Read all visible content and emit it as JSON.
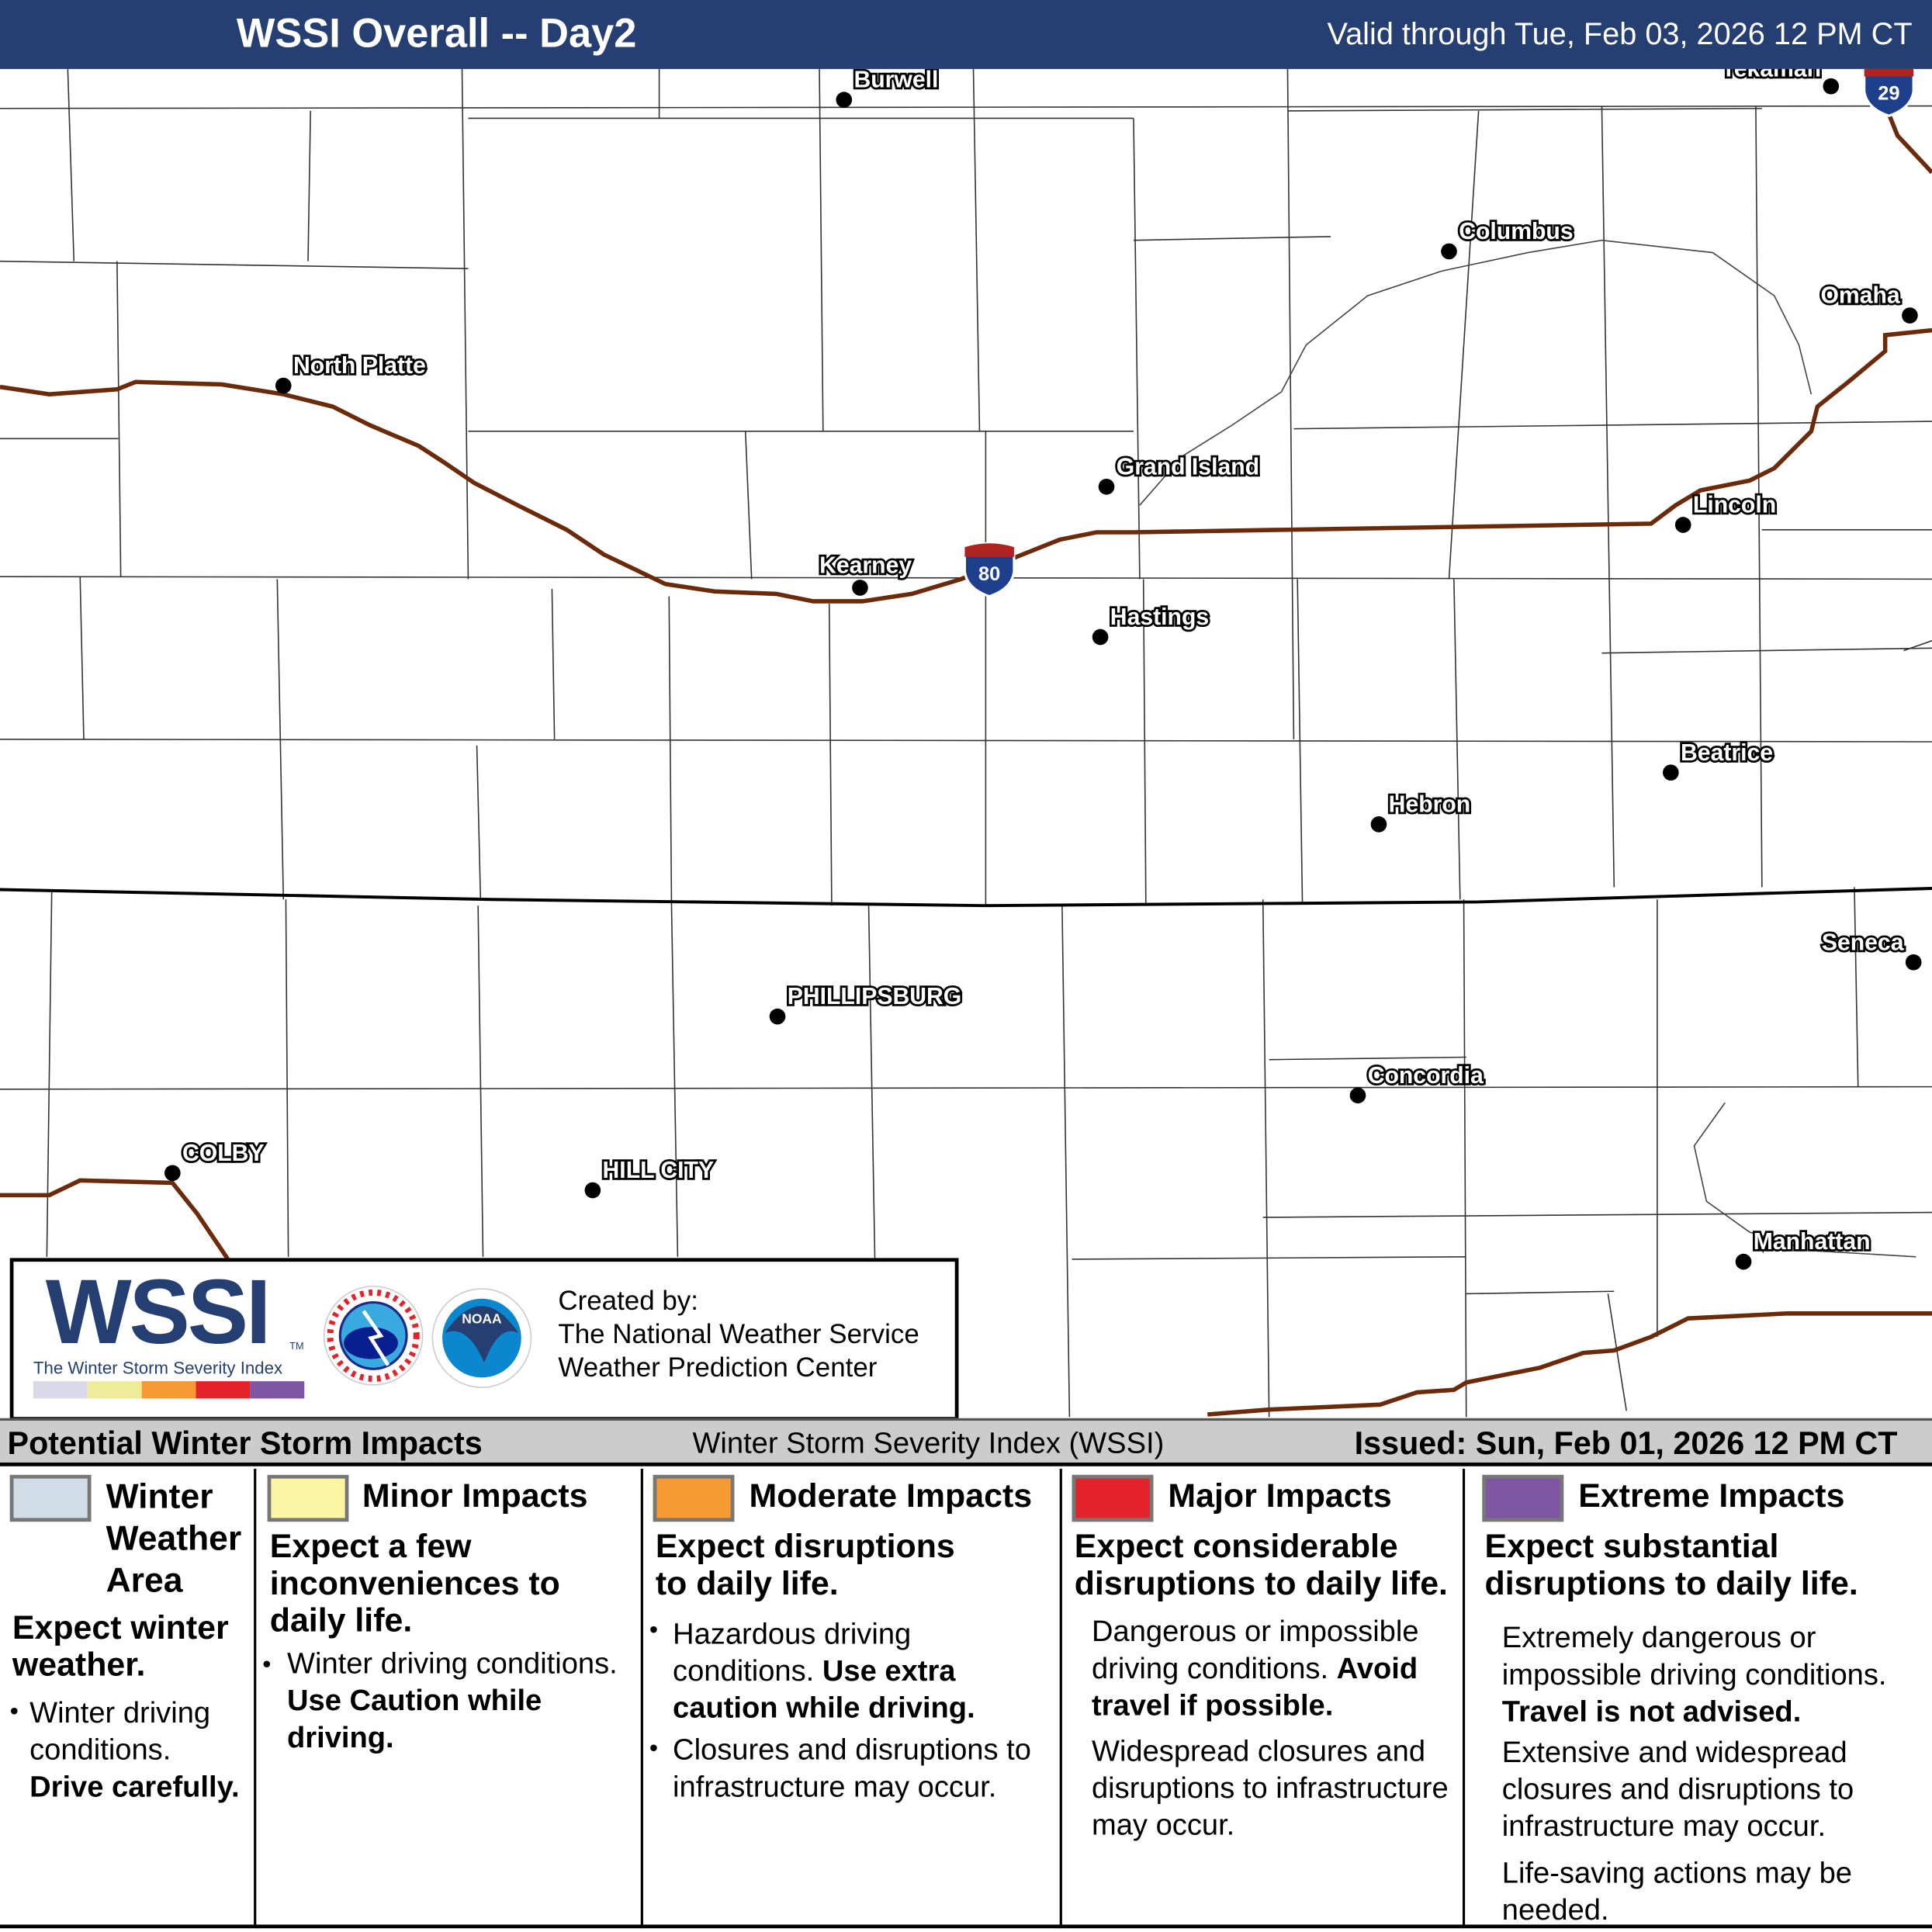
{
  "header": {
    "title": "WSSI Overall -- Day2",
    "valid": "Valid through Tue, Feb 03, 2026 12 PM CT"
  },
  "map": {
    "cities": [
      {
        "name": "Burwell"
      },
      {
        "name": "Tekamah"
      },
      {
        "name": "Columbus"
      },
      {
        "name": "Omaha"
      },
      {
        "name": "North Platte"
      },
      {
        "name": "Grand Island"
      },
      {
        "name": "Lincoln"
      },
      {
        "name": "Kearney"
      },
      {
        "name": "Hastings"
      },
      {
        "name": "Beatrice"
      },
      {
        "name": "Hebron"
      },
      {
        "name": "Seneca"
      },
      {
        "name": "PHILLIPSBURG"
      },
      {
        "name": "Concordia"
      },
      {
        "name": "COLBY"
      },
      {
        "name": "HILL CITY"
      },
      {
        "name": "Manhattan"
      }
    ],
    "shields": [
      {
        "route": "80"
      },
      {
        "route": "29"
      }
    ],
    "colors": {
      "interstate": "#6b2a0a",
      "shield_blue": "#1d3f8c",
      "shield_red": "#b22222"
    }
  },
  "logo": {
    "wssi": "WSSI",
    "tm": "TM",
    "subtitle": "The Winter Storm Severity Index",
    "created_by": "Created by:",
    "org1": "The National Weather Service",
    "org2": "Weather Prediction Center",
    "bar_colors": [
      "#d9d9e8",
      "#eded99",
      "#f79a33",
      "#e32229",
      "#7e56a3"
    ]
  },
  "legend": {
    "title": "Potential Winter Storm Impacts",
    "center": "Winter Storm Severity Index (WSSI)",
    "issued": "Issued: Sun, Feb 01, 2026 12 PM CT",
    "categories": [
      {
        "name": "Winter Weather Area",
        "color": "#d1dde6",
        "summary": "Expect winter weather.",
        "b1": "Winter driving conditions.",
        "b1_bold": "Drive carefully."
      },
      {
        "name": "Minor Impacts",
        "color": "#fbf6a3",
        "summary": "Expect a few inconveniences to daily life.",
        "b1": "Winter driving conditions.",
        "b1_bold": "Use Caution while driving."
      },
      {
        "name": "Moderate Impacts",
        "color": "#f79a33",
        "summary": "Expect disruptions to daily life.",
        "b1": "Hazardous driving conditions.",
        "b1_bold": "Use extra caution while driving.",
        "b2": "Closures and disruptions to infrastructure may occur."
      },
      {
        "name": "Major Impacts",
        "color": "#e32229",
        "summary": "Expect considerable disruptions to daily life.",
        "b1": "Dangerous or impossible driving conditions.",
        "b1_bold": "Avoid travel if possible.",
        "b2": "Widespread closures and disruptions to infrastructure may occur."
      },
      {
        "name": "Extreme Impacts",
        "color": "#7e56a3",
        "summary": "Expect substantial disruptions to daily life.",
        "b1": "Extremely dangerous or impossible driving conditions.",
        "b1_bold": "Travel is not advised.",
        "b2": "Extensive and widespread closures and disruptions to infrastructure may occur.",
        "b3": "Life-saving actions may be needed."
      }
    ]
  }
}
